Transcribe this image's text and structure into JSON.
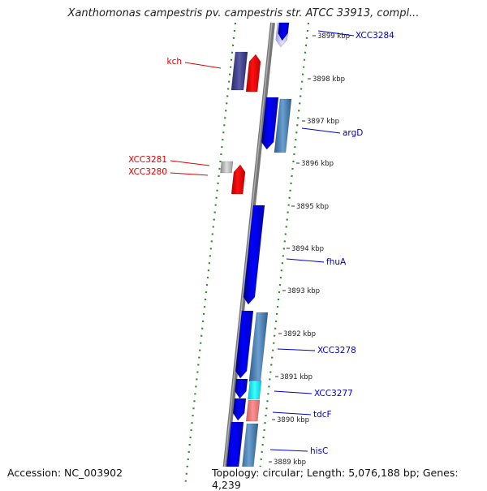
{
  "title": "Xanthomonas campestris pv. campestris str. ATCC 33913, compl...",
  "accession": "Accession: NC_003902",
  "summary": "Topology: circular; Length: 5,076,188 bp; Genes: 4,239",
  "colors": {
    "forward_gene": "#0000ee",
    "reverse_gene": "#ff0000",
    "gc_skew": "#2e8b2e",
    "backbone": "#808080",
    "forward_label": "#0000cc",
    "reverse_label": "#dd0000"
  },
  "ticks": [
    {
      "label": "3899 kbp"
    },
    {
      "label": "3898 kbp"
    },
    {
      "label": "3897 kbp"
    },
    {
      "label": "3896 kbp"
    },
    {
      "label": "3895 kbp"
    },
    {
      "label": "3894 kbp"
    },
    {
      "label": "3893 kbp"
    },
    {
      "label": "3892 kbp"
    },
    {
      "label": "3891 kbp"
    },
    {
      "label": "3890 kbp"
    },
    {
      "label": "3889 kbp"
    }
  ],
  "genes": [
    {
      "name": "XCC3284",
      "strand": "forward"
    },
    {
      "name": "kch",
      "strand": "reverse"
    },
    {
      "name": "argD",
      "strand": "forward"
    },
    {
      "name": "XCC3281",
      "strand": "reverse"
    },
    {
      "name": "XCC3280",
      "strand": "reverse"
    },
    {
      "name": "fhuA",
      "strand": "forward"
    },
    {
      "name": "XCC3278",
      "strand": "forward"
    },
    {
      "name": "XCC3277",
      "strand": "forward"
    },
    {
      "name": "tdcF",
      "strand": "forward"
    },
    {
      "name": "hisC",
      "strand": "forward"
    }
  ]
}
